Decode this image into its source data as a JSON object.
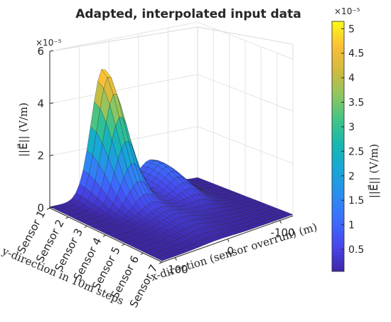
{
  "chart_data": {
    "type": "surface",
    "title": "Adapted, interpolated input data",
    "zlabel": "||E⃗|| (V/m)",
    "xlabel": "x-direction (sensor overrun) (m)",
    "ylabel": "y-direction in 10m steps",
    "x_ticks": [
      "100",
      "0",
      "-100"
    ],
    "y_ticks": [
      "Sensor 1",
      "Sensor 2",
      "Sensor 3",
      "Sensor 4",
      "Sensor 5",
      "Sensor 6",
      "Sensor 7"
    ],
    "z_ticks": [
      "0",
      "2",
      "4",
      "6"
    ],
    "z_exponent": "×10⁻⁵",
    "x_range": [
      125,
      -125
    ],
    "y_range": [
      1,
      7
    ],
    "z_range": [
      0,
      6e-05
    ],
    "colorbar": {
      "label": "||E⃗|| (V/m)",
      "exponent": "×10⁻⁵",
      "ticks": [
        "0.5",
        "1",
        "1.5",
        "2",
        "2.5",
        "3",
        "3.5",
        "4",
        "4.5",
        "5"
      ],
      "range": [
        5e-07,
        5.15e-05
      ],
      "colormap": "parula"
    },
    "surface_peaks": [
      {
        "x": 35,
        "y": 1,
        "z": 4.9e-05
      },
      {
        "x": -50,
        "y": 1,
        "z": 1.2e-05
      }
    ],
    "grid": true
  }
}
